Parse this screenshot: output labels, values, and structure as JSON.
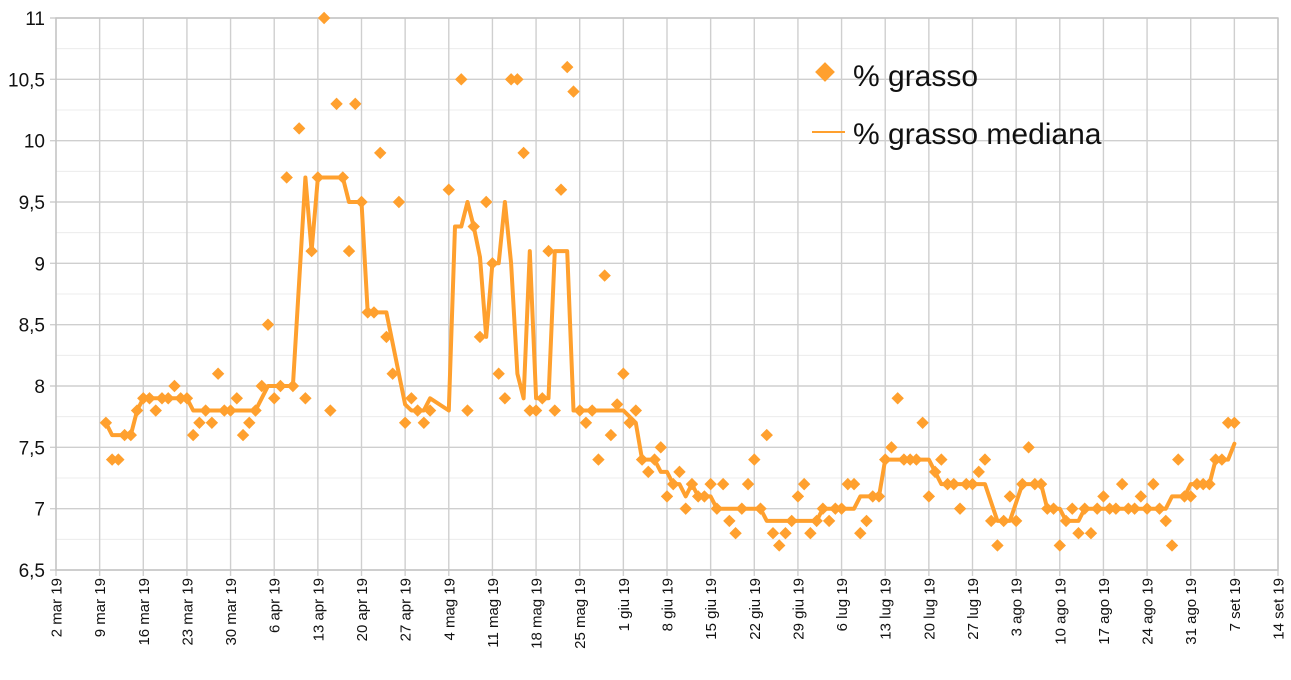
{
  "chart_data": {
    "type": "scatter",
    "title": "",
    "xlabel": "",
    "ylabel": "",
    "x_type": "date",
    "xlim": [
      "2019-03-02",
      "2019-09-14"
    ],
    "ylim": [
      6.5,
      11
    ],
    "y_major_step": 0.5,
    "y_minor_step": 0.25,
    "grid": true,
    "legend_position": "top-right",
    "y_tick_labels": [
      "6,5",
      "7",
      "7,5",
      "8",
      "8,5",
      "9",
      "9,5",
      "10",
      "10,5",
      "11"
    ],
    "x_tick_dates": [
      "2019-03-02",
      "2019-03-09",
      "2019-03-16",
      "2019-03-23",
      "2019-03-30",
      "2019-04-06",
      "2019-04-13",
      "2019-04-20",
      "2019-04-27",
      "2019-05-04",
      "2019-05-11",
      "2019-05-18",
      "2019-05-25",
      "2019-06-01",
      "2019-06-08",
      "2019-06-15",
      "2019-06-22",
      "2019-06-29",
      "2019-07-06",
      "2019-07-13",
      "2019-07-20",
      "2019-07-27",
      "2019-08-03",
      "2019-08-10",
      "2019-08-17",
      "2019-08-24",
      "2019-08-31",
      "2019-09-07",
      "2019-09-14"
    ],
    "x_tick_labels": [
      "2 mar 19",
      "9 mar 19",
      "16 mar 19",
      "23 mar 19",
      "30 mar 19",
      "6 apr 19",
      "13 apr 19",
      "20 apr 19",
      "27 apr 19",
      "4 mag 19",
      "11 mag 19",
      "18 mag 19",
      "25 mag 19",
      "1 giu 19",
      "8 giu 19",
      "15 giu 19",
      "22 giu 19",
      "29 giu 19",
      "6 lug 19",
      "13 lug 19",
      "20 lug 19",
      "27 lug 19",
      "3 ago 19",
      "10 ago 19",
      "17 ago 19",
      "24 ago 19",
      "31 ago 19",
      "7 set 19",
      "14 set 19"
    ],
    "series": [
      {
        "name": "% grasso",
        "kind": "scatter",
        "marker": "diamond",
        "color": "#ffa02e",
        "points": [
          [
            "2019-03-10",
            7.7
          ],
          [
            "2019-03-11",
            7.4
          ],
          [
            "2019-03-12",
            7.4
          ],
          [
            "2019-03-13",
            7.6
          ],
          [
            "2019-03-14",
            7.6
          ],
          [
            "2019-03-15",
            7.8
          ],
          [
            "2019-03-16",
            7.9
          ],
          [
            "2019-03-17",
            7.9
          ],
          [
            "2019-03-18",
            7.8
          ],
          [
            "2019-03-19",
            7.9
          ],
          [
            "2019-03-20",
            7.9
          ],
          [
            "2019-03-21",
            8.0
          ],
          [
            "2019-03-22",
            7.9
          ],
          [
            "2019-03-23",
            7.9
          ],
          [
            "2019-03-24",
            7.6
          ],
          [
            "2019-03-25",
            7.7
          ],
          [
            "2019-03-26",
            7.8
          ],
          [
            "2019-03-27",
            7.7
          ],
          [
            "2019-03-28",
            8.1
          ],
          [
            "2019-03-29",
            7.8
          ],
          [
            "2019-03-30",
            7.8
          ],
          [
            "2019-03-31",
            7.9
          ],
          [
            "2019-04-01",
            7.6
          ],
          [
            "2019-04-02",
            7.7
          ],
          [
            "2019-04-03",
            7.8
          ],
          [
            "2019-04-04",
            8.0
          ],
          [
            "2019-04-05",
            8.5
          ],
          [
            "2019-04-06",
            7.9
          ],
          [
            "2019-04-07",
            8.0
          ],
          [
            "2019-04-08",
            9.7
          ],
          [
            "2019-04-09",
            8.0
          ],
          [
            "2019-04-10",
            10.1
          ],
          [
            "2019-04-11",
            7.9
          ],
          [
            "2019-04-12",
            9.1
          ],
          [
            "2019-04-13",
            9.7
          ],
          [
            "2019-04-14",
            11.0
          ],
          [
            "2019-04-15",
            7.8
          ],
          [
            "2019-04-16",
            10.3
          ],
          [
            "2019-04-17",
            9.7
          ],
          [
            "2019-04-18",
            9.1
          ],
          [
            "2019-04-19",
            10.3
          ],
          [
            "2019-04-20",
            9.5
          ],
          [
            "2019-04-21",
            8.6
          ],
          [
            "2019-04-22",
            8.6
          ],
          [
            "2019-04-23",
            9.9
          ],
          [
            "2019-04-24",
            8.4
          ],
          [
            "2019-04-25",
            8.1
          ],
          [
            "2019-04-26",
            9.5
          ],
          [
            "2019-04-27",
            7.7
          ],
          [
            "2019-04-28",
            7.9
          ],
          [
            "2019-04-29",
            7.8
          ],
          [
            "2019-04-30",
            7.7
          ],
          [
            "2019-05-01",
            7.8
          ],
          [
            "2019-05-04",
            9.6
          ],
          [
            "2019-05-06",
            10.5
          ],
          [
            "2019-05-07",
            7.8
          ],
          [
            "2019-05-08",
            9.3
          ],
          [
            "2019-05-09",
            8.4
          ],
          [
            "2019-05-10",
            9.5
          ],
          [
            "2019-05-11",
            9.0
          ],
          [
            "2019-05-12",
            8.1
          ],
          [
            "2019-05-13",
            7.9
          ],
          [
            "2019-05-14",
            10.5
          ],
          [
            "2019-05-15",
            10.5
          ],
          [
            "2019-05-16",
            9.9
          ],
          [
            "2019-05-17",
            7.8
          ],
          [
            "2019-05-18",
            7.8
          ],
          [
            "2019-05-19",
            7.9
          ],
          [
            "2019-05-20",
            9.1
          ],
          [
            "2019-05-21",
            7.8
          ],
          [
            "2019-05-22",
            9.6
          ],
          [
            "2019-05-23",
            10.6
          ],
          [
            "2019-05-24",
            10.4
          ],
          [
            "2019-05-25",
            7.8
          ],
          [
            "2019-05-26",
            7.7
          ],
          [
            "2019-05-27",
            7.8
          ],
          [
            "2019-05-28",
            7.4
          ],
          [
            "2019-05-29",
            8.9
          ],
          [
            "2019-05-30",
            7.6
          ],
          [
            "2019-05-31",
            7.85
          ],
          [
            "2019-06-01",
            8.1
          ],
          [
            "2019-06-02",
            7.7
          ],
          [
            "2019-06-03",
            7.8
          ],
          [
            "2019-06-04",
            7.4
          ],
          [
            "2019-06-05",
            7.3
          ],
          [
            "2019-06-06",
            7.4
          ],
          [
            "2019-06-07",
            7.5
          ],
          [
            "2019-06-08",
            7.1
          ],
          [
            "2019-06-09",
            7.2
          ],
          [
            "2019-06-10",
            7.3
          ],
          [
            "2019-06-11",
            7.0
          ],
          [
            "2019-06-12",
            7.2
          ],
          [
            "2019-06-13",
            7.1
          ],
          [
            "2019-06-14",
            7.1
          ],
          [
            "2019-06-15",
            7.2
          ],
          [
            "2019-06-16",
            7.0
          ],
          [
            "2019-06-17",
            7.2
          ],
          [
            "2019-06-18",
            6.9
          ],
          [
            "2019-06-19",
            6.8
          ],
          [
            "2019-06-20",
            7.0
          ],
          [
            "2019-06-21",
            7.2
          ],
          [
            "2019-06-22",
            7.4
          ],
          [
            "2019-06-23",
            7.0
          ],
          [
            "2019-06-24",
            7.6
          ],
          [
            "2019-06-25",
            6.8
          ],
          [
            "2019-06-26",
            6.7
          ],
          [
            "2019-06-27",
            6.8
          ],
          [
            "2019-06-28",
            6.9
          ],
          [
            "2019-06-29",
            7.1
          ],
          [
            "2019-06-30",
            7.2
          ],
          [
            "2019-07-01",
            6.8
          ],
          [
            "2019-07-02",
            6.9
          ],
          [
            "2019-07-03",
            7.0
          ],
          [
            "2019-07-04",
            6.9
          ],
          [
            "2019-07-05",
            7.0
          ],
          [
            "2019-07-06",
            7.0
          ],
          [
            "2019-07-07",
            7.2
          ],
          [
            "2019-07-08",
            7.2
          ],
          [
            "2019-07-09",
            6.8
          ],
          [
            "2019-07-10",
            6.9
          ],
          [
            "2019-07-11",
            7.1
          ],
          [
            "2019-07-12",
            7.1
          ],
          [
            "2019-07-13",
            7.4
          ],
          [
            "2019-07-14",
            7.5
          ],
          [
            "2019-07-15",
            7.9
          ],
          [
            "2019-07-16",
            7.4
          ],
          [
            "2019-07-17",
            7.4
          ],
          [
            "2019-07-18",
            7.4
          ],
          [
            "2019-07-19",
            7.7
          ],
          [
            "2019-07-20",
            7.1
          ],
          [
            "2019-07-21",
            7.3
          ],
          [
            "2019-07-22",
            7.4
          ],
          [
            "2019-07-23",
            7.2
          ],
          [
            "2019-07-24",
            7.2
          ],
          [
            "2019-07-25",
            7.0
          ],
          [
            "2019-07-26",
            7.2
          ],
          [
            "2019-07-27",
            7.2
          ],
          [
            "2019-07-28",
            7.3
          ],
          [
            "2019-07-29",
            7.4
          ],
          [
            "2019-07-30",
            6.9
          ],
          [
            "2019-07-31",
            6.7
          ],
          [
            "2019-08-01",
            6.9
          ],
          [
            "2019-08-02",
            7.1
          ],
          [
            "2019-08-03",
            6.9
          ],
          [
            "2019-08-04",
            7.2
          ],
          [
            "2019-08-05",
            7.5
          ],
          [
            "2019-08-06",
            7.2
          ],
          [
            "2019-08-07",
            7.2
          ],
          [
            "2019-08-08",
            7.0
          ],
          [
            "2019-08-09",
            7.0
          ],
          [
            "2019-08-10",
            6.7
          ],
          [
            "2019-08-11",
            6.9
          ],
          [
            "2019-08-12",
            7.0
          ],
          [
            "2019-08-13",
            6.8
          ],
          [
            "2019-08-14",
            7.0
          ],
          [
            "2019-08-15",
            6.8
          ],
          [
            "2019-08-16",
            7.0
          ],
          [
            "2019-08-17",
            7.1
          ],
          [
            "2019-08-18",
            7.0
          ],
          [
            "2019-08-19",
            7.0
          ],
          [
            "2019-08-20",
            7.2
          ],
          [
            "2019-08-21",
            7.0
          ],
          [
            "2019-08-22",
            7.0
          ],
          [
            "2019-08-23",
            7.1
          ],
          [
            "2019-08-24",
            7.0
          ],
          [
            "2019-08-25",
            7.2
          ],
          [
            "2019-08-26",
            7.0
          ],
          [
            "2019-08-27",
            6.9
          ],
          [
            "2019-08-28",
            6.7
          ],
          [
            "2019-08-29",
            7.4
          ],
          [
            "2019-08-30",
            7.1
          ],
          [
            "2019-08-31",
            7.1
          ],
          [
            "2019-09-01",
            7.2
          ],
          [
            "2019-09-02",
            7.2
          ],
          [
            "2019-09-03",
            7.2
          ],
          [
            "2019-09-04",
            7.4
          ],
          [
            "2019-09-05",
            7.4
          ],
          [
            "2019-09-06",
            7.7
          ],
          [
            "2019-09-07",
            7.7
          ]
        ]
      },
      {
        "name": "% grasso mediana",
        "kind": "line",
        "color": "#ffa02e",
        "points": [
          [
            "2019-03-10",
            7.7
          ],
          [
            "2019-03-11",
            7.6
          ],
          [
            "2019-03-14",
            7.6
          ],
          [
            "2019-03-15",
            7.8
          ],
          [
            "2019-03-16",
            7.9
          ],
          [
            "2019-03-23",
            7.9
          ],
          [
            "2019-03-24",
            7.8
          ],
          [
            "2019-04-03",
            7.8
          ],
          [
            "2019-04-04",
            7.9
          ],
          [
            "2019-04-05",
            8.0
          ],
          [
            "2019-04-09",
            8.0
          ],
          [
            "2019-04-11",
            9.7
          ],
          [
            "2019-04-12",
            9.1
          ],
          [
            "2019-04-13",
            9.7
          ],
          [
            "2019-04-17",
            9.7
          ],
          [
            "2019-04-18",
            9.5
          ],
          [
            "2019-04-20",
            9.5
          ],
          [
            "2019-04-21",
            8.6
          ],
          [
            "2019-04-24",
            8.6
          ],
          [
            "2019-04-27",
            7.85
          ],
          [
            "2019-04-28",
            7.8
          ],
          [
            "2019-04-30",
            7.8
          ],
          [
            "2019-05-01",
            7.9
          ],
          [
            "2019-05-04",
            7.8
          ],
          [
            "2019-05-05",
            9.3
          ],
          [
            "2019-05-06",
            9.3
          ],
          [
            "2019-05-07",
            9.5
          ],
          [
            "2019-05-08",
            9.3
          ],
          [
            "2019-05-09",
            9.05
          ],
          [
            "2019-05-10",
            8.4
          ],
          [
            "2019-05-11",
            9.0
          ],
          [
            "2019-05-12",
            9.0
          ],
          [
            "2019-05-13",
            9.5
          ],
          [
            "2019-05-14",
            9.0
          ],
          [
            "2019-05-15",
            8.1
          ],
          [
            "2019-05-16",
            7.9
          ],
          [
            "2019-05-17",
            9.1
          ],
          [
            "2019-05-18",
            7.9
          ],
          [
            "2019-05-20",
            7.9
          ],
          [
            "2019-05-21",
            9.1
          ],
          [
            "2019-05-23",
            9.1
          ],
          [
            "2019-05-24",
            7.8
          ],
          [
            "2019-06-01",
            7.8
          ],
          [
            "2019-06-03",
            7.7
          ],
          [
            "2019-06-04",
            7.4
          ],
          [
            "2019-06-06",
            7.4
          ],
          [
            "2019-06-07",
            7.3
          ],
          [
            "2019-06-08",
            7.3
          ],
          [
            "2019-06-09",
            7.2
          ],
          [
            "2019-06-10",
            7.2
          ],
          [
            "2019-06-11",
            7.1
          ],
          [
            "2019-06-12",
            7.2
          ],
          [
            "2019-06-13",
            7.1
          ],
          [
            "2019-06-15",
            7.1
          ],
          [
            "2019-06-16",
            7.0
          ],
          [
            "2019-06-23",
            7.0
          ],
          [
            "2019-06-24",
            6.9
          ],
          [
            "2019-07-02",
            6.9
          ],
          [
            "2019-07-03",
            7.0
          ],
          [
            "2019-07-08",
            7.0
          ],
          [
            "2019-07-09",
            7.1
          ],
          [
            "2019-07-12",
            7.1
          ],
          [
            "2019-07-13",
            7.4
          ],
          [
            "2019-07-20",
            7.4
          ],
          [
            "2019-07-21",
            7.3
          ],
          [
            "2019-07-22",
            7.2
          ],
          [
            "2019-07-29",
            7.2
          ],
          [
            "2019-07-31",
            6.9
          ],
          [
            "2019-08-02",
            6.9
          ],
          [
            "2019-08-04",
            7.2
          ],
          [
            "2019-08-07",
            7.2
          ],
          [
            "2019-08-08",
            7.0
          ],
          [
            "2019-08-10",
            7.0
          ],
          [
            "2019-08-11",
            6.9
          ],
          [
            "2019-08-13",
            6.9
          ],
          [
            "2019-08-14",
            7.0
          ],
          [
            "2019-08-27",
            7.0
          ],
          [
            "2019-08-28",
            7.1
          ],
          [
            "2019-08-30",
            7.1
          ],
          [
            "2019-08-31",
            7.2
          ],
          [
            "2019-09-03",
            7.2
          ],
          [
            "2019-09-04",
            7.4
          ],
          [
            "2019-09-06",
            7.4
          ],
          [
            "2019-09-07",
            7.53
          ]
        ]
      }
    ]
  },
  "legend": {
    "items": [
      {
        "label": "% grasso",
        "symbol": "diamond"
      },
      {
        "label": "% grasso mediana",
        "symbol": "line"
      }
    ]
  }
}
